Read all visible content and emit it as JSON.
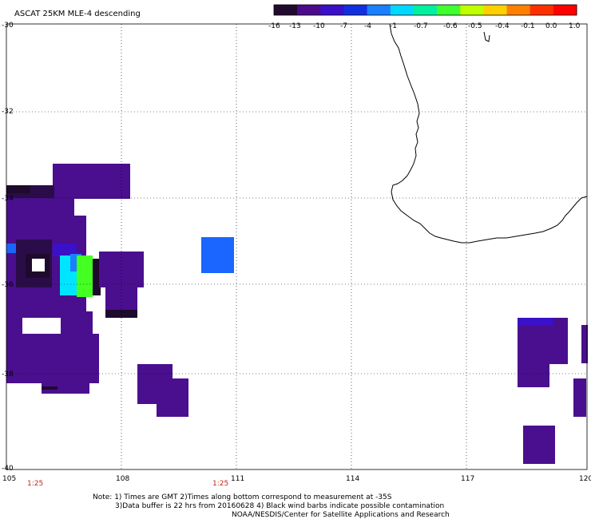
{
  "map": {
    "title": "ASCAT 25KM MLE-4 descending",
    "lon_ticks": [
      "105",
      "108",
      "111",
      "114",
      "117",
      "120"
    ],
    "lat_ticks": [
      "-30",
      "-32",
      "-34",
      "-36",
      "-38",
      "-40"
    ],
    "lon_range": [
      105,
      120
    ],
    "lat_range": [
      -30,
      -40
    ],
    "grid": "dotted",
    "colorbar": {
      "labels": [
        "-16",
        "-13",
        "-10",
        "-7",
        "-4",
        "-1",
        "-0.7",
        "-0.6",
        "-0.5",
        "-0.4",
        "-0.1",
        "0.0",
        "1.0"
      ],
      "colors": [
        "#220a2e",
        "#4a0c8a",
        "#3a10c8",
        "#1030e0",
        "#1a80ff",
        "#00d8ff",
        "#00f0a0",
        "#40ff30",
        "#c0ff00",
        "#ffd000",
        "#ff8000",
        "#ff3000",
        "#ff0000"
      ]
    },
    "time_labels": [
      {
        "text": "1:25",
        "lon": 105.6
      },
      {
        "text": "1:25",
        "lon": 110.5
      }
    ],
    "notes": {
      "line1": "Note: 1) Times are GMT 2)Times along bottom correspond to measurement at -35S",
      "line2": "3)Data buffer is 22 hrs from 20160628 4) Black wind barbs indicate possible contamination",
      "line3": "NOAA/NESDIS/Center for Satellite Applications and Research"
    },
    "colors": {
      "purple": "#4a0f8e",
      "dark": "#1e0a2c",
      "blue": "#1a66ff",
      "cyan": "#00e5ff",
      "green": "#44ff22",
      "coast": "#000000"
    }
  }
}
